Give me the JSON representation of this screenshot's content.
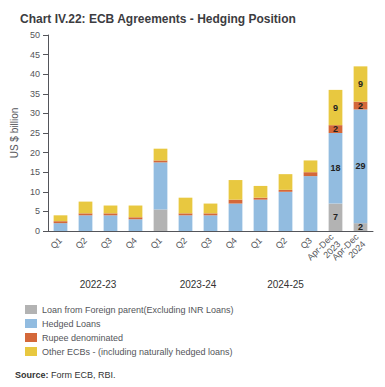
{
  "chart_data": {
    "type": "bar",
    "title": "Chart IV.22: ECB Agreements - Hedging Position",
    "ylabel": "US $ billion",
    "categories": [
      "Q1",
      "Q2",
      "Q3",
      "Q4",
      "Q1",
      "Q2",
      "Q3",
      "Q4",
      "Q1",
      "Q2",
      "Q3",
      "Apr-Dec\n2023",
      "Apr-Dec\n2024"
    ],
    "series": [
      {
        "name": "Loan from Foreign parent(Excluding INR Loans)",
        "color": "#b3b3b3",
        "values": [
          0,
          0,
          0,
          0,
          5.5,
          0,
          0,
          0,
          0,
          0,
          0,
          7,
          2
        ],
        "value_labels": [
          null,
          null,
          null,
          null,
          null,
          null,
          null,
          null,
          null,
          null,
          null,
          "7",
          "2"
        ]
      },
      {
        "name": "Hedged Loans",
        "color": "#92bce0",
        "values": [
          2,
          4,
          4,
          3,
          12,
          4,
          4,
          7,
          8,
          10,
          14,
          18,
          29
        ],
        "value_labels": [
          null,
          null,
          null,
          null,
          null,
          null,
          null,
          null,
          null,
          null,
          null,
          "18",
          "29"
        ]
      },
      {
        "name": "Rupee denominated",
        "color": "#d4683a",
        "values": [
          0.5,
          0.5,
          0.5,
          0.5,
          0.5,
          0.5,
          0.5,
          1,
          0.5,
          0.5,
          1,
          2,
          2
        ],
        "value_labels": [
          null,
          null,
          null,
          null,
          null,
          null,
          null,
          null,
          null,
          null,
          null,
          "2",
          "2"
        ]
      },
      {
        "name": "Other ECBs - (including naturally hedged loans)",
        "color": "#e8c840",
        "values": [
          1.5,
          3,
          2,
          3,
          3,
          4,
          2.5,
          5,
          3,
          4,
          3,
          9,
          9
        ],
        "value_labels": [
          null,
          null,
          null,
          null,
          null,
          null,
          null,
          null,
          null,
          null,
          null,
          "9",
          "9"
        ]
      }
    ],
    "stacked": true,
    "data_labels": true,
    "ylim": [
      0,
      50
    ],
    "yticks": [
      0,
      5,
      10,
      15,
      20,
      25,
      30,
      35,
      40,
      45,
      50
    ],
    "grid": false,
    "legend": "bottom",
    "annotations": [
      {
        "text": "2022-23",
        "x": 1.5
      },
      {
        "text": "2023-24",
        "x": 5.5
      },
      {
        "text": "2024-25",
        "x": 9.0
      }
    ],
    "source": "Source: Form ECB, RBI."
  }
}
